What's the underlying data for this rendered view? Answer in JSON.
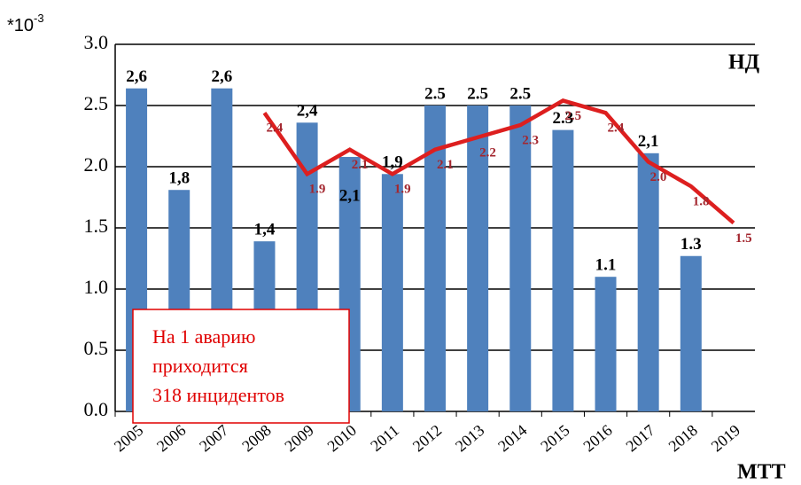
{
  "chart_data": {
    "type": "bar_line",
    "unit": {
      "base": "*10",
      "exp": "-3"
    },
    "series_label_top": "НД",
    "series_label_bottom": "МТТ",
    "annotation": [
      "На 1 аварию",
      "приходится",
      "318 инцидентов"
    ],
    "categories": [
      "2005",
      "2006",
      "2007",
      "2008",
      "2009",
      "2010",
      "2011",
      "2012",
      "2013",
      "2014",
      "2015",
      "2016",
      "2017",
      "2018",
      "2019"
    ],
    "series": [
      {
        "color": "#4f81bd",
        "values": [
          2.64,
          1.81,
          2.64,
          1.39,
          2.36,
          2.08,
          1.94,
          2.5,
          2.5,
          2.5,
          2.3,
          1.1,
          2.11,
          1.27,
          null
        ],
        "value_labels": [
          "2,6",
          "1,8",
          "2,6",
          "1,4",
          "2,4",
          "2,1",
          "1,9",
          "2.5",
          "2.5",
          "2.5",
          "2.3",
          "1.1",
          "2,1",
          "1.3",
          null
        ]
      },
      {
        "color": "#dd1f1f",
        "values": [
          null,
          null,
          null,
          2.44,
          1.94,
          2.14,
          1.94,
          2.14,
          2.24,
          2.34,
          2.54,
          2.44,
          2.04,
          1.84,
          1.54
        ],
        "value_labels": [
          null,
          null,
          null,
          "2.4",
          "1.9",
          "2.1",
          "1.9",
          "2.1",
          "2.2",
          "2.3",
          "2.5",
          "2.4",
          "2.0",
          "1.8",
          "1.5"
        ]
      }
    ],
    "ylim": [
      0,
      3
    ],
    "yticks": [
      {
        "value": 0,
        "label": "0.0"
      },
      {
        "value": 0.5,
        "label": "0.5"
      },
      {
        "value": 1,
        "label": "1.0"
      },
      {
        "value": 1.5,
        "label": "1.5"
      },
      {
        "value": 2,
        "label": "2.0"
      },
      {
        "value": 2.5,
        "label": "2.5"
      },
      {
        "value": 3,
        "label": "3.0"
      }
    ],
    "grid": true
  }
}
